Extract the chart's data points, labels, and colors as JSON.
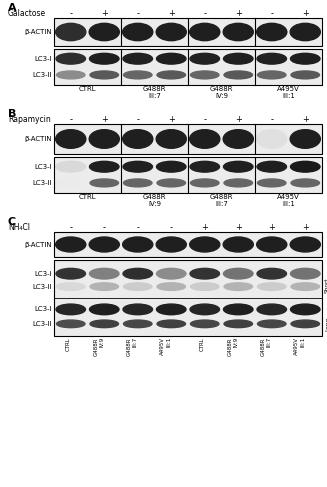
{
  "fig_width": 3.27,
  "fig_height": 4.87,
  "bg_color": "#ffffff",
  "panel_A": {
    "label": "A",
    "treatment_label": "Galactose",
    "treatment_signs": [
      "-",
      "+",
      "-",
      "+",
      "-",
      "+",
      "-",
      "+"
    ],
    "group_labels": [
      "CTRL",
      "G488R\nIII:7",
      "G488R\nIV:9",
      "A495V\nIII:1"
    ],
    "actin_intensities": [
      0.18,
      0.12,
      0.12,
      0.12,
      0.12,
      0.12,
      0.12,
      0.12
    ],
    "lc3i_intensities": [
      0.18,
      0.12,
      0.13,
      0.12,
      0.13,
      0.12,
      0.13,
      0.12
    ],
    "lc3ii_intensities": [
      0.55,
      0.35,
      0.4,
      0.35,
      0.4,
      0.35,
      0.4,
      0.35
    ]
  },
  "panel_B": {
    "label": "B",
    "treatment_label": "Rapamycin",
    "treatment_signs": [
      "-",
      "+",
      "-",
      "+",
      "-",
      "+",
      "-",
      "+"
    ],
    "group_labels": [
      "CTRL",
      "G488R\nIV:9",
      "G488R\nIII:7",
      "A495V\nIII:1"
    ],
    "actin_intensities": [
      0.12,
      0.12,
      0.12,
      0.12,
      0.12,
      0.12,
      0.88,
      0.12
    ],
    "lc3i_intensities": [
      0.85,
      0.12,
      0.13,
      0.12,
      0.13,
      0.12,
      0.12,
      0.1
    ],
    "lc3ii_intensities": [
      0.92,
      0.4,
      0.4,
      0.4,
      0.4,
      0.4,
      0.4,
      0.4
    ]
  },
  "panel_C": {
    "label": "C",
    "treatment_label": "NH₄Cl",
    "treatment_signs": [
      "-",
      "-",
      "-",
      "-",
      "+",
      "+",
      "+",
      "+"
    ],
    "lane_labels": [
      "CTRL",
      "G488R",
      "IV:9",
      "G488R",
      "III:7",
      "A495V",
      "III:1",
      "CTRL",
      "G488R",
      "IV:9",
      "G488R",
      "III:7",
      "A495V",
      "III:1"
    ],
    "lane_labels_simple": [
      "CTRL",
      "G488R\nIV:9",
      "G488R\nIII:7",
      "A495V\nIII:1",
      "CTRL",
      "G488R\nIV:9",
      "G488R\nIII:7",
      "A495V\nIII:1"
    ],
    "actin_intensities": [
      0.12,
      0.12,
      0.12,
      0.12,
      0.12,
      0.12,
      0.12,
      0.12
    ],
    "lc3i_sh_intensities": [
      0.2,
      0.5,
      0.18,
      0.55,
      0.2,
      0.45,
      0.2,
      0.45
    ],
    "lc3ii_sh_intensities": [
      0.85,
      0.7,
      0.8,
      0.7,
      0.8,
      0.7,
      0.8,
      0.7
    ],
    "lc3i_lg_intensities": [
      0.15,
      0.12,
      0.15,
      0.12,
      0.15,
      0.12,
      0.15,
      0.12
    ],
    "lc3ii_lg_intensities": [
      0.3,
      0.25,
      0.28,
      0.25,
      0.28,
      0.25,
      0.28,
      0.25
    ]
  }
}
